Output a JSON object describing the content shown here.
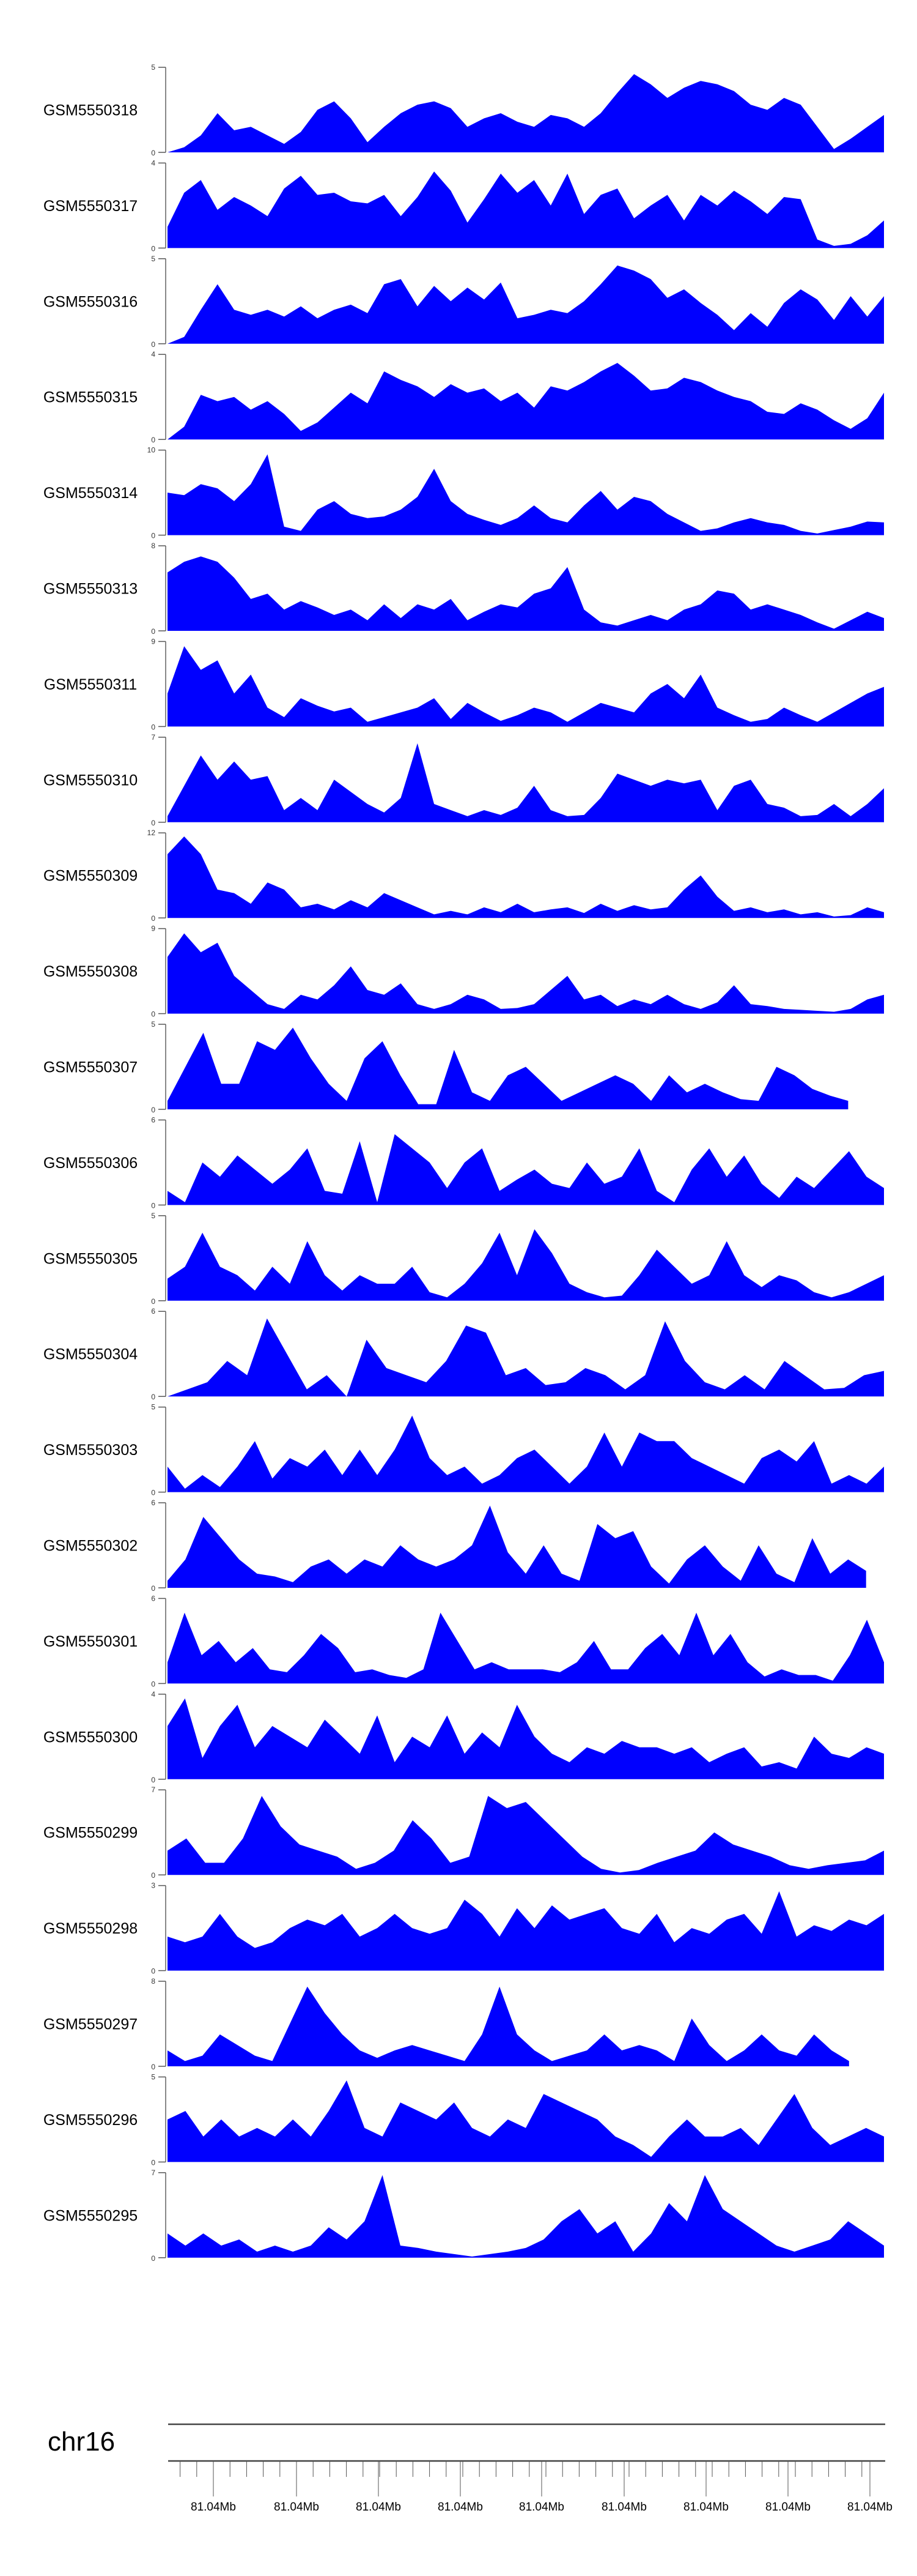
{
  "chart_data": {
    "type": "area",
    "fill_color": "#0000ff",
    "chromosome": "chr16",
    "x_tick_labels": [
      "81.04Mb",
      "81.04Mb",
      "81.04Mb",
      "81.04Mb",
      "81.04Mb",
      "81.04Mb",
      "81.04Mb",
      "81.04Mb",
      "81.04Mb"
    ],
    "tracks": [
      {
        "name": "GSM5550318",
        "ylim": [
          0,
          5
        ],
        "values": [
          0,
          0.3,
          1,
          2.3,
          1.3,
          1.5,
          1,
          0.5,
          1.2,
          2.5,
          3,
          2,
          0.6,
          1.5,
          2.3,
          2.8,
          3,
          2.6,
          1.5,
          2,
          2.3,
          1.8,
          1.5,
          2.2,
          2,
          1.5,
          2.3,
          3.5,
          4.6,
          4,
          3.2,
          3.8,
          4.2,
          4,
          3.6,
          2.8,
          2.5,
          3.2,
          2.8,
          1.5,
          0.2,
          0.8,
          1.5,
          2.2
        ]
      },
      {
        "name": "GSM5550317",
        "ylim": [
          0,
          4
        ],
        "values": [
          1,
          2.6,
          3.2,
          1.8,
          2.4,
          2,
          1.5,
          2.8,
          3.4,
          2.5,
          2.6,
          2.2,
          2.1,
          2.5,
          1.5,
          2.4,
          3.6,
          2.7,
          1.2,
          2.3,
          3.5,
          2.6,
          3.2,
          2,
          3.5,
          1.6,
          2.5,
          2.8,
          1.4,
          2,
          2.5,
          1.3,
          2.5,
          2,
          2.7,
          2.2,
          1.6,
          2.4,
          2.3,
          0.4,
          0.1,
          0.2,
          0.6,
          1.3
        ]
      },
      {
        "name": "GSM5550316",
        "ylim": [
          0,
          5
        ],
        "values": [
          0,
          0.4,
          2,
          3.5,
          2,
          1.7,
          2,
          1.6,
          2.2,
          1.5,
          2,
          2.3,
          1.8,
          3.5,
          3.8,
          2.2,
          3.4,
          2.5,
          3.3,
          2.6,
          3.6,
          1.5,
          1.7,
          2,
          1.8,
          2.5,
          3.5,
          4.6,
          4.3,
          3.8,
          2.7,
          3.2,
          2.4,
          1.7,
          0.8,
          1.8,
          1,
          2.4,
          3.2,
          2.6,
          1.4,
          2.8,
          1.6,
          2.8
        ]
      },
      {
        "name": "GSM5550315",
        "ylim": [
          0,
          4
        ],
        "values": [
          0,
          0.6,
          2.1,
          1.8,
          2,
          1.4,
          1.8,
          1.2,
          0.4,
          0.8,
          1.5,
          2.2,
          1.7,
          3.2,
          2.8,
          2.5,
          2,
          2.6,
          2.2,
          2.4,
          1.8,
          2.2,
          1.5,
          2.5,
          2.3,
          2.7,
          3.2,
          3.6,
          3,
          2.3,
          2.4,
          2.9,
          2.7,
          2.3,
          2,
          1.8,
          1.3,
          1.2,
          1.7,
          1.4,
          0.9,
          0.5,
          1,
          2.2
        ]
      },
      {
        "name": "GSM5550314",
        "ylim": [
          0,
          10
        ],
        "values": [
          5,
          4.7,
          6,
          5.5,
          4,
          6,
          9.5,
          1,
          0.5,
          3,
          4,
          2.5,
          2,
          2.2,
          3,
          4.5,
          7.8,
          4,
          2.5,
          1.8,
          1.2,
          2,
          3.5,
          2,
          1.5,
          3.5,
          5.2,
          3,
          4.5,
          4,
          2.5,
          1.5,
          0.5,
          0.8,
          1.5,
          2,
          1.5,
          1.2,
          0.5,
          0.2,
          0.6,
          1,
          1.6,
          1.5
        ]
      },
      {
        "name": "GSM5550313",
        "ylim": [
          0,
          8
        ],
        "values": [
          5.5,
          6.5,
          7,
          6.5,
          5,
          3,
          3.5,
          2,
          2.8,
          2.2,
          1.5,
          2,
          1,
          2.5,
          1.2,
          2.5,
          2,
          3,
          1,
          1.8,
          2.5,
          2.2,
          3.5,
          4,
          6,
          2,
          0.8,
          0.5,
          1,
          1.5,
          1,
          2,
          2.5,
          3.8,
          3.5,
          2,
          2.5,
          2,
          1.5,
          0.8,
          0.2,
          1,
          1.8,
          1.2
        ]
      },
      {
        "name": "GSM5550311",
        "ylim": [
          0,
          9
        ],
        "values": [
          3.5,
          8.5,
          6,
          7,
          3.5,
          5.5,
          2,
          1,
          3,
          2.2,
          1.6,
          2,
          0.5,
          1,
          1.5,
          2,
          3,
          0.8,
          2.5,
          1.5,
          0.6,
          1.2,
          2,
          1.5,
          0.5,
          1.5,
          2.5,
          2,
          1.5,
          3.5,
          4.5,
          3,
          5.5,
          2,
          1.2,
          0.5,
          0.8,
          2,
          1.2,
          0.5,
          1.5,
          2.5,
          3.5,
          4.2
        ]
      },
      {
        "name": "GSM5550310",
        "ylim": [
          0,
          7
        ],
        "values": [
          0.5,
          3,
          5.5,
          3.5,
          5,
          3.5,
          3.8,
          1,
          2,
          1,
          3.5,
          2.5,
          1.5,
          0.8,
          2,
          6.5,
          1.5,
          1,
          0.5,
          1,
          0.6,
          1.2,
          3,
          1,
          0.5,
          0.6,
          2,
          4,
          3.5,
          3,
          3.5,
          3.2,
          3.5,
          1,
          3,
          3.5,
          1.5,
          1.2,
          0.5,
          0.6,
          1.5,
          0.5,
          1.5,
          2.8
        ]
      },
      {
        "name": "GSM5550309",
        "ylim": [
          0,
          12
        ],
        "values": [
          9,
          11.5,
          9,
          4,
          3.5,
          2,
          5,
          4,
          1.5,
          2,
          1.2,
          2.5,
          1.5,
          3.5,
          2.5,
          1.5,
          0.5,
          1,
          0.5,
          1.5,
          0.8,
          2,
          0.8,
          1.2,
          1.5,
          0.7,
          2,
          1,
          1.8,
          1.2,
          1.5,
          4,
          6,
          3,
          1,
          1.5,
          0.8,
          1.2,
          0.5,
          0.8,
          0.2,
          0.4,
          1.5,
          0.8
        ]
      },
      {
        "name": "GSM5550308",
        "ylim": [
          0,
          9
        ],
        "values": [
          6,
          8.5,
          6.5,
          7.5,
          4,
          2.5,
          1,
          0.5,
          2,
          1.5,
          3,
          5,
          2.5,
          2,
          3.2,
          1,
          0.5,
          1,
          2,
          1.5,
          0.5,
          0.6,
          1,
          2.5,
          4,
          1.5,
          2,
          0.8,
          1.5,
          1,
          2,
          1,
          0.5,
          1.2,
          3,
          1,
          0.8,
          0.5,
          0.4,
          0.3,
          0.2,
          0.5,
          1.5,
          2
        ]
      },
      {
        "name": "GSM5550307",
        "ylim": [
          0,
          5
        ],
        "values": [
          0.5,
          2.5,
          4.5,
          1.5,
          1.5,
          4,
          3.5,
          4.8,
          3,
          1.5,
          0.5,
          3,
          4,
          2,
          0.3,
          0.3,
          3.5,
          1,
          0.5,
          2,
          2.5,
          1.5,
          0.5,
          1,
          1.5,
          2,
          1.5,
          0.5,
          2,
          1,
          1.5,
          1,
          0.6,
          0.5,
          2.5,
          2,
          1.2,
          0.8,
          0.5,
          null,
          null
        ]
      },
      {
        "name": "GSM5550306",
        "ylim": [
          0,
          6
        ],
        "values": [
          1,
          0.2,
          3,
          2,
          3.5,
          2.5,
          1.5,
          2.5,
          4,
          1,
          0.8,
          4.5,
          0.2,
          5,
          4,
          3,
          1.2,
          3,
          4,
          1,
          1.8,
          2.5,
          1.5,
          1.2,
          3,
          1.5,
          2,
          4,
          1,
          0.2,
          2.5,
          4,
          2,
          3.5,
          1.5,
          0.5,
          2,
          1.2,
          2.5,
          3.8,
          2,
          1.2
        ]
      },
      {
        "name": "GSM5550305",
        "ylim": [
          0,
          5
        ],
        "values": [
          1.3,
          2,
          4,
          2,
          1.5,
          0.6,
          2,
          1,
          3.5,
          1.5,
          0.6,
          1.5,
          1,
          1,
          2,
          0.5,
          0.2,
          1,
          2.2,
          4,
          1.5,
          4.2,
          2.8,
          1,
          0.5,
          0.2,
          0.3,
          1.5,
          3,
          2,
          1,
          1.5,
          3.5,
          1.5,
          0.8,
          1.5,
          1.2,
          0.5,
          0.2,
          0.5,
          1,
          1.5
        ]
      },
      {
        "name": "GSM5550304",
        "ylim": [
          0,
          6
        ],
        "values": [
          0,
          0.5,
          1,
          2.5,
          1.5,
          5.5,
          3,
          0.5,
          1.5,
          0,
          4,
          2,
          1.5,
          1,
          2.5,
          5,
          4.5,
          1.5,
          2,
          0.8,
          1,
          2,
          1.5,
          0.5,
          1.5,
          5.3,
          2.5,
          1,
          0.5,
          1.5,
          0.5,
          2.5,
          1.5,
          0.5,
          0.6,
          1.5,
          1.8
        ]
      },
      {
        "name": "GSM5550303",
        "ylim": [
          0,
          5
        ],
        "values": [
          1.5,
          0.2,
          1,
          0.3,
          1.5,
          3,
          0.8,
          2,
          1.5,
          2.5,
          1,
          2.5,
          1,
          2.5,
          4.5,
          2,
          1,
          1.5,
          0.5,
          1,
          2,
          2.5,
          1.5,
          0.5,
          1.5,
          3.5,
          1.5,
          3.5,
          3,
          3,
          2,
          1.5,
          1,
          0.5,
          2,
          2.5,
          1.8,
          3,
          0.5,
          1,
          0.5,
          1.5
        ]
      },
      {
        "name": "GSM5550302",
        "ylim": [
          0,
          6
        ],
        "values": [
          0.5,
          2,
          5,
          3.5,
          2,
          1,
          0.8,
          0.4,
          1.5,
          2,
          1,
          2,
          1.5,
          3,
          2,
          1.5,
          2,
          3,
          5.8,
          2.5,
          1,
          3,
          1,
          0.5,
          4.5,
          3.5,
          4,
          1.5,
          0.3,
          2,
          3,
          1.5,
          0.5,
          3,
          1,
          0.4,
          3.5,
          1,
          2,
          1.2,
          null
        ]
      },
      {
        "name": "GSM5550301",
        "ylim": [
          0,
          6
        ],
        "values": [
          1.5,
          5,
          2,
          3,
          1.5,
          2.5,
          1,
          0.8,
          2,
          3.5,
          2.5,
          0.8,
          1,
          0.6,
          0.4,
          1,
          5,
          3,
          1,
          1.5,
          1,
          1,
          1,
          0.8,
          1.5,
          3,
          1,
          1,
          2.5,
          3.5,
          2,
          5,
          2,
          3.5,
          1.5,
          0.5,
          1,
          0.6,
          0.6,
          0.2,
          2,
          4.5,
          1.5
        ]
      },
      {
        "name": "GSM5550300",
        "ylim": [
          0,
          4
        ],
        "values": [
          2.5,
          3.8,
          1,
          2.5,
          3.5,
          1.5,
          2.5,
          2,
          1.5,
          2.8,
          2,
          1.2,
          3,
          0.8,
          2,
          1.5,
          3,
          1.2,
          2.2,
          1.5,
          3.5,
          2,
          1.2,
          0.8,
          1.5,
          1.2,
          1.8,
          1.5,
          1.5,
          1.2,
          1.5,
          0.8,
          1.2,
          1.5,
          0.6,
          0.8,
          0.5,
          2,
          1.2,
          1,
          1.5,
          1.2
        ]
      },
      {
        "name": "GSM5550299",
        "ylim": [
          0,
          7
        ],
        "values": [
          2,
          3,
          1,
          1,
          3,
          6.5,
          4,
          2.5,
          2,
          1.5,
          0.5,
          1,
          2,
          4.5,
          3,
          1,
          1.5,
          6.5,
          5.5,
          6,
          4.5,
          3,
          1.5,
          0.5,
          0.2,
          0.4,
          1,
          1.5,
          2,
          3.5,
          2.5,
          2,
          1.5,
          0.8,
          0.5,
          0.8,
          1,
          1.2,
          2
        ]
      },
      {
        "name": "GSM5550298",
        "ylim": [
          0,
          3
        ],
        "values": [
          1.2,
          1,
          1.2,
          2,
          1.2,
          0.8,
          1,
          1.5,
          1.8,
          1.6,
          2,
          1.2,
          1.5,
          2,
          1.5,
          1.3,
          1.5,
          2.5,
          2,
          1.2,
          2.2,
          1.5,
          2.3,
          1.8,
          2,
          2.2,
          1.5,
          1.3,
          2,
          1,
          1.5,
          1.3,
          1.8,
          2,
          1.3,
          2.8,
          1.2,
          1.6,
          1.4,
          1.8,
          1.6,
          2
        ]
      },
      {
        "name": "GSM5550297",
        "ylim": [
          0,
          8
        ],
        "values": [
          1.5,
          0.5,
          1,
          3,
          2,
          1,
          0.5,
          4,
          7.5,
          5,
          3,
          1.5,
          0.8,
          1.5,
          2,
          1.5,
          1,
          0.5,
          3,
          7.5,
          3,
          1.5,
          0.5,
          1,
          1.5,
          3,
          1.5,
          2,
          1.5,
          0.5,
          4.5,
          2,
          0.5,
          1.5,
          3,
          1.5,
          1,
          3,
          1.5,
          0.5,
          null,
          null
        ]
      },
      {
        "name": "GSM5550296",
        "ylim": [
          0,
          5
        ],
        "values": [
          2.5,
          3,
          1.5,
          2.5,
          1.5,
          2,
          1.5,
          2.5,
          1.5,
          3,
          4.8,
          2,
          1.5,
          3.5,
          3,
          2.5,
          3.5,
          2,
          1.5,
          2.5,
          2,
          4,
          3.5,
          3,
          2.5,
          1.5,
          1,
          0.3,
          1.5,
          2.5,
          1.5,
          1.5,
          2,
          1,
          2.5,
          4,
          2,
          1,
          1.5,
          2,
          1.5
        ]
      },
      {
        "name": "GSM5550295",
        "ylim": [
          0,
          7
        ],
        "values": [
          2,
          1,
          2,
          1,
          1.5,
          0.5,
          1,
          0.5,
          1,
          2.5,
          1.5,
          3,
          6.8,
          1,
          0.8,
          0.5,
          0.3,
          0.1,
          0.3,
          0.5,
          0.8,
          1.5,
          3,
          4,
          2,
          3,
          0.5,
          2,
          4.5,
          3,
          6.8,
          4,
          3,
          2,
          1,
          0.5,
          1,
          1.5,
          3,
          2,
          1
        ]
      }
    ]
  }
}
